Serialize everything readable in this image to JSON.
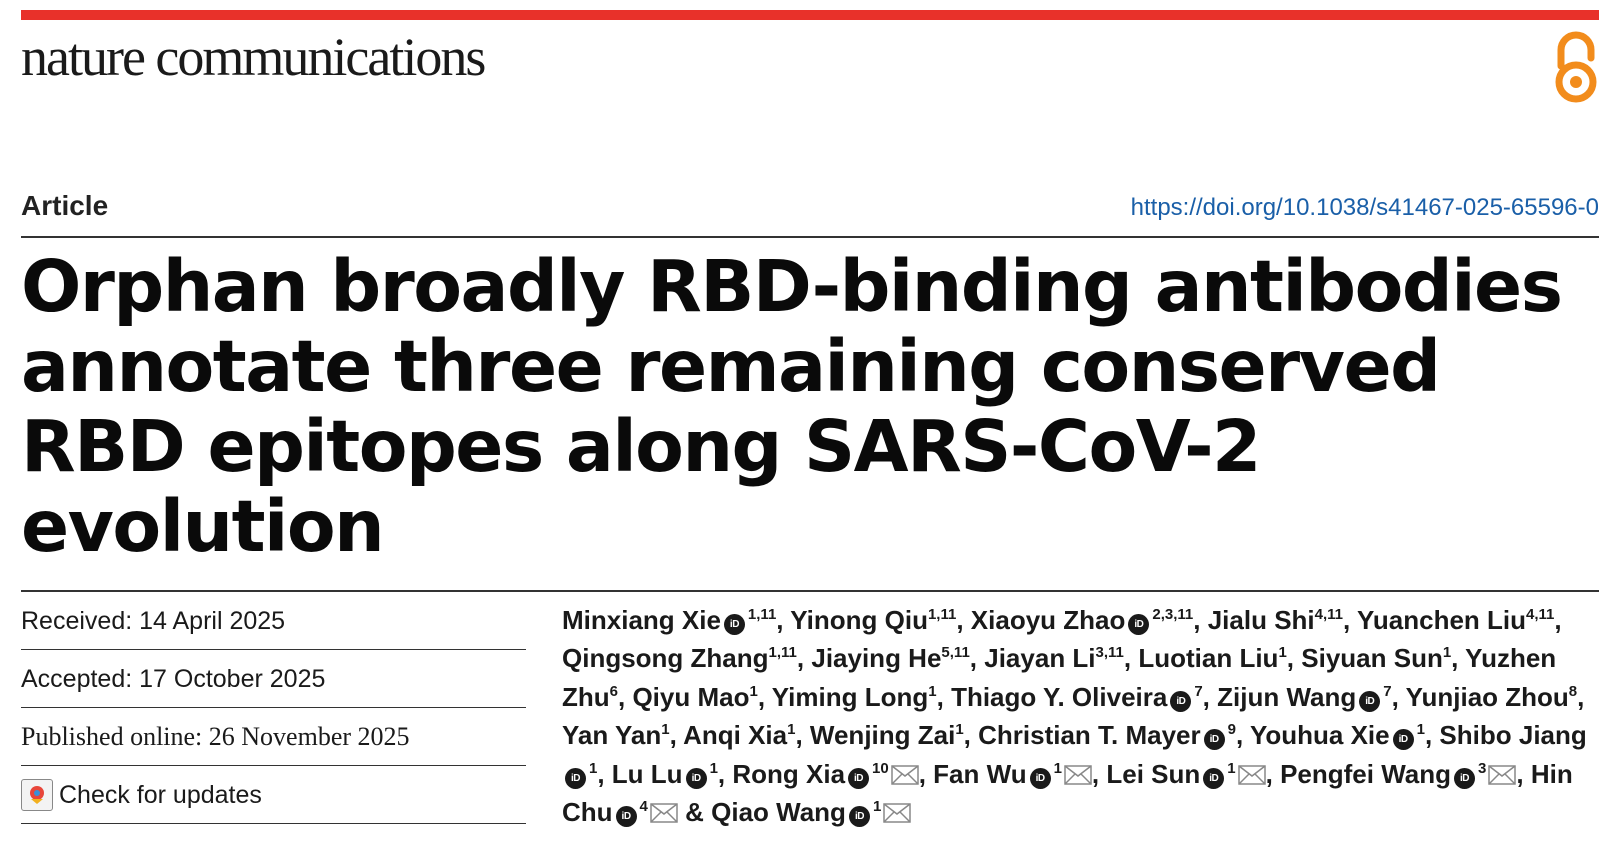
{
  "journal": {
    "name": "nature communications",
    "accent_color": "#e8312a",
    "open_access_icon": "open-access-icon"
  },
  "article": {
    "type": "Article",
    "doi": "https://doi.org/10.1038/s41467-025-65596-0",
    "title": "Orphan broadly RBD-binding antibodies annotate three remaining conserved RBD epitopes along SARS-CoV-2 evolution"
  },
  "dates": {
    "received": "Received: 14 April 2025",
    "accepted": "Accepted: 17 October 2025",
    "published": "Published online: 26 November 2025",
    "check_updates": "Check for updates"
  },
  "authors": [
    {
      "name": "Minxiang Xie",
      "orcid": true,
      "aff": "1,11",
      "email": false,
      "sep": ", "
    },
    {
      "name": "Yinong Qiu",
      "orcid": false,
      "aff": "1,11",
      "email": false,
      "sep": ", "
    },
    {
      "name": "Xiaoyu Zhao",
      "orcid": true,
      "aff": "2,3,11",
      "email": false,
      "sep": ", "
    },
    {
      "name": "Jialu Shi",
      "orcid": false,
      "aff": "4,11",
      "email": false,
      "sep": ", "
    },
    {
      "name": "Yuanchen Liu",
      "orcid": false,
      "aff": "4,11",
      "email": false,
      "sep": ", "
    },
    {
      "name": "Qingsong Zhang",
      "orcid": false,
      "aff": "1,11",
      "email": false,
      "sep": ", "
    },
    {
      "name": "Jiaying He",
      "orcid": false,
      "aff": "5,11",
      "email": false,
      "sep": ", "
    },
    {
      "name": "Jiayan Li",
      "orcid": false,
      "aff": "3,11",
      "email": false,
      "sep": ", "
    },
    {
      "name": "Luotian Liu",
      "orcid": false,
      "aff": "1",
      "email": false,
      "sep": ", "
    },
    {
      "name": "Siyuan Sun",
      "orcid": false,
      "aff": "1",
      "email": false,
      "sep": ", "
    },
    {
      "name": "Yuzhen Zhu",
      "orcid": false,
      "aff": "6",
      "email": false,
      "sep": ", "
    },
    {
      "name": "Qiyu Mao",
      "orcid": false,
      "aff": "1",
      "email": false,
      "sep": ", "
    },
    {
      "name": "Yiming Long",
      "orcid": false,
      "aff": "1",
      "email": false,
      "sep": ", "
    },
    {
      "name": "Thiago Y. Oliveira",
      "orcid": true,
      "aff": "7",
      "email": false,
      "sep": ", "
    },
    {
      "name": "Zijun Wang",
      "orcid": true,
      "aff": "7",
      "email": false,
      "sep": ", "
    },
    {
      "name": "Yunjiao Zhou",
      "orcid": false,
      "aff": "8",
      "email": false,
      "sep": ", "
    },
    {
      "name": "Yan Yan",
      "orcid": false,
      "aff": "1",
      "email": false,
      "sep": ", "
    },
    {
      "name": "Anqi Xia",
      "orcid": false,
      "aff": "1",
      "email": false,
      "sep": ", "
    },
    {
      "name": "Wenjing Zai",
      "orcid": false,
      "aff": "1",
      "email": false,
      "sep": ", "
    },
    {
      "name": "Christian T. Mayer",
      "orcid": true,
      "aff": "9",
      "email": false,
      "sep": ", "
    },
    {
      "name": "Youhua Xie",
      "orcid": true,
      "aff": "1",
      "email": false,
      "sep": ", "
    },
    {
      "name": "Shibo Jiang",
      "orcid": true,
      "aff": "1",
      "email": false,
      "sep": ", "
    },
    {
      "name": "Lu Lu",
      "orcid": true,
      "aff": "1",
      "email": false,
      "sep": ", "
    },
    {
      "name": "Rong Xia",
      "orcid": true,
      "aff": "10",
      "email": true,
      "sep": ", "
    },
    {
      "name": "Fan Wu",
      "orcid": true,
      "aff": "1",
      "email": true,
      "sep": ", "
    },
    {
      "name": "Lei Sun",
      "orcid": true,
      "aff": "1",
      "email": true,
      "sep": ", "
    },
    {
      "name": "Pengfei Wang",
      "orcid": true,
      "aff": "3",
      "email": true,
      "sep": ", "
    },
    {
      "name": "Hin Chu",
      "orcid": true,
      "aff": "4",
      "email": true,
      "sep": " & "
    },
    {
      "name": "Qiao Wang",
      "orcid": true,
      "aff": "1",
      "email": true,
      "sep": ""
    }
  ]
}
